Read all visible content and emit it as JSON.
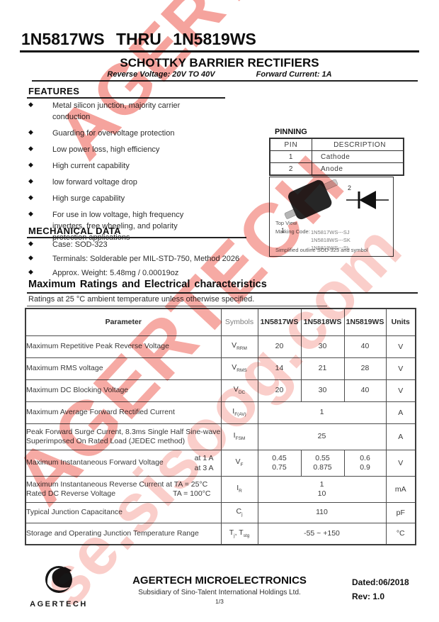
{
  "header": {
    "part_range": "1N5817WS THRU 1N5819WS",
    "title": "SCHOTTKY BARRIER RECTIFIERS",
    "reverse_voltage": "Reverse Voltage: 20V TO 40V",
    "forward_current": "Forward Current: 1A"
  },
  "glyphs": {
    "bullet": "◆"
  },
  "features": {
    "heading": "FEATURES",
    "items": [
      [
        "Metal silicon junction, majority carrier",
        "conduction"
      ],
      [
        "Guarding for overvoltage protection"
      ],
      [
        "Low power loss, high efficiency"
      ],
      [
        "High current capability"
      ],
      [
        "low forward voltage drop"
      ],
      [
        "High surge capability"
      ],
      [
        "For use in low voltage, high frequency",
        "inverters, free wheeling, and polarity",
        "protection applications"
      ]
    ]
  },
  "pinning": {
    "heading": "PINNING",
    "columns": [
      "PIN",
      "DESCRIPTION"
    ],
    "rows": [
      [
        "1",
        "Cathode"
      ],
      [
        "2",
        "Anode"
      ]
    ]
  },
  "package": {
    "pin1": "1",
    "pin2": "2",
    "top_view": "Top View",
    "marking_label": "Marking Code:",
    "marking_codes": [
      "1N5817WS---SJ",
      "1N5818WS---SK",
      "1N5819WS---SL"
    ],
    "caption": "Simplified outline SOD-323 and symbol"
  },
  "mechanical": {
    "heading": "MECHANICAL DATA",
    "items": [
      [
        "Case: SOD-323"
      ],
      [
        "Terminals: Solderable per MIL-STD-750, Method 2026"
      ],
      [
        "Approx. Weight: 5.48mg / 0.00019oz"
      ]
    ]
  },
  "ratings": {
    "heading": "Maximum Ratings and Electrical characteristics",
    "subtitle": "Ratings at 25 °C ambient temperature unless otherwise specified.",
    "table": {
      "headers": [
        "Parameter",
        "Symbols",
        "1N5817WS",
        "1N5818WS",
        "1N5819WS",
        "Units"
      ],
      "rows": [
        {
          "param_lines": [
            "Maximum Repetitive Peak Reverse Voltage"
          ],
          "symbol": [
            [
              "V",
              "RRM"
            ]
          ],
          "values": [
            [
              "20"
            ],
            [
              "30"
            ],
            [
              "40"
            ]
          ],
          "unit": "V"
        },
        {
          "param_lines": [
            "Maximum RMS voltage"
          ],
          "symbol": [
            [
              "V",
              "RMS"
            ]
          ],
          "values": [
            [
              "14"
            ],
            [
              "21"
            ],
            [
              "28"
            ]
          ],
          "unit": "V"
        },
        {
          "param_lines": [
            "Maximum DC Blocking Voltage"
          ],
          "symbol": [
            [
              "V",
              "DC"
            ]
          ],
          "values": [
            [
              "20"
            ],
            [
              "30"
            ],
            [
              "40"
            ]
          ],
          "unit": "V"
        },
        {
          "param_lines": [
            "Maximum Average Forward Rectified Current"
          ],
          "symbol": [
            [
              "I",
              "F(AV)"
            ]
          ],
          "merged": [
            "1"
          ],
          "unit": "A"
        },
        {
          "param_lines": [
            "Peak Forward Surge Current, 8.3ms Single Half Sine-wave",
            "Superimposed On Rated Load (JEDEC method)"
          ],
          "symbol": [
            [
              "I",
              "FSM"
            ]
          ],
          "merged": [
            "25"
          ],
          "unit": "A"
        },
        {
          "param_lines": [
            "Maximum Instantaneous Forward Voltage"
          ],
          "param_side": [
            "at 1 A",
            "at 3 A"
          ],
          "symbol": [
            [
              "V",
              "F"
            ]
          ],
          "values": [
            [
              "0.45",
              "0.75"
            ],
            [
              "0.55",
              "0.875"
            ],
            [
              "0.6",
              "0.9"
            ]
          ],
          "unit": "V"
        },
        {
          "param_lines": [
            {
              "left": "Maximum Instantaneous Reverse Current at TA = 25°C"
            },
            {
              "left": "Rated DC Reverse Voltage",
              "right": "TA = 100°C"
            }
          ],
          "symbol": [
            [
              "I",
              "R"
            ]
          ],
          "merged": [
            "1",
            "10"
          ],
          "unit": "mA"
        },
        {
          "param_lines": [
            "Typical Junction Capacitance"
          ],
          "symbol": [
            [
              "C",
              "j"
            ]
          ],
          "merged": [
            "110"
          ],
          "unit": "pF"
        },
        {
          "param_lines": [
            "Storage and Operating Junction Temperature Range"
          ],
          "symbol": [
            [
              "T",
              "j"
            ],
            [
              ", ",
              ""
            ],
            [
              "T",
              "stg"
            ]
          ],
          "merged": [
            "-55 ~ +150"
          ],
          "unit": "°C"
        }
      ]
    }
  },
  "footer": {
    "logo_text": "AGERTECH",
    "company": "AGERTECH MICROELECTRONICS",
    "subsidiary": "Subsidiary of Sino-Talent International Holdings Ltd.",
    "page": "1/3",
    "dated": "Dated:06/2018",
    "rev": "Rev: 1.0"
  },
  "watermark": {
    "primary": "AGERTECH",
    "secondary": "se.sisoog.com",
    "color": "#e93325"
  }
}
